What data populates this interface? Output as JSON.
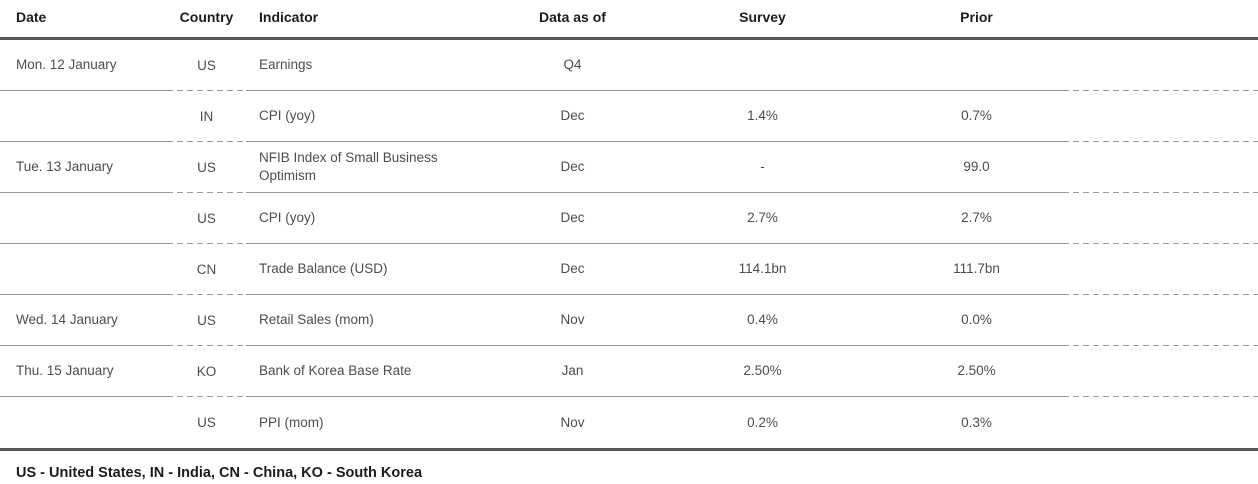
{
  "table": {
    "headers": {
      "date": "Date",
      "country": "Country",
      "indicator": "Indicator",
      "data_as_of": "Data as of",
      "survey": "Survey",
      "prior": "Prior"
    },
    "rows": [
      {
        "date": "Mon. 12 January",
        "country": "US",
        "indicator": "Earnings",
        "data_as_of": "Q4",
        "survey": "",
        "prior": ""
      },
      {
        "date": "",
        "country": "IN",
        "indicator": "CPI (yoy)",
        "data_as_of": "Dec",
        "survey": "1.4%",
        "prior": "0.7%"
      },
      {
        "date": "Tue. 13 January",
        "country": "US",
        "indicator": "NFIB Index of Small Business Optimism",
        "data_as_of": "Dec",
        "survey": "-",
        "prior": "99.0"
      },
      {
        "date": "",
        "country": "US",
        "indicator": "CPI (yoy)",
        "data_as_of": "Dec",
        "survey": "2.7%",
        "prior": "2.7%"
      },
      {
        "date": "",
        "country": "CN",
        "indicator": "Trade Balance (USD)",
        "data_as_of": "Dec",
        "survey": "114.1bn",
        "prior": "111.7bn"
      },
      {
        "date": "Wed. 14 January",
        "country": "US",
        "indicator": "Retail Sales (mom)",
        "data_as_of": "Nov",
        "survey": "0.4%",
        "prior": "0.0%"
      },
      {
        "date": "Thu. 15 January",
        "country": "KO",
        "indicator": "Bank of Korea Base Rate",
        "data_as_of": "Jan",
        "survey": "2.50%",
        "prior": "2.50%"
      },
      {
        "date": "",
        "country": "US",
        "indicator": "PPI (mom)",
        "data_as_of": "Nov",
        "survey": "0.2%",
        "prior": "0.3%"
      }
    ]
  },
  "footer": {
    "legend": "US - United States, IN - India, CN - China, KO - South Korea"
  },
  "colors": {
    "thick_rule": "#56575a",
    "thin_rule": "#9a9a9a",
    "header_text": "#1c1c1c",
    "body_text": "#4d4d4d"
  }
}
